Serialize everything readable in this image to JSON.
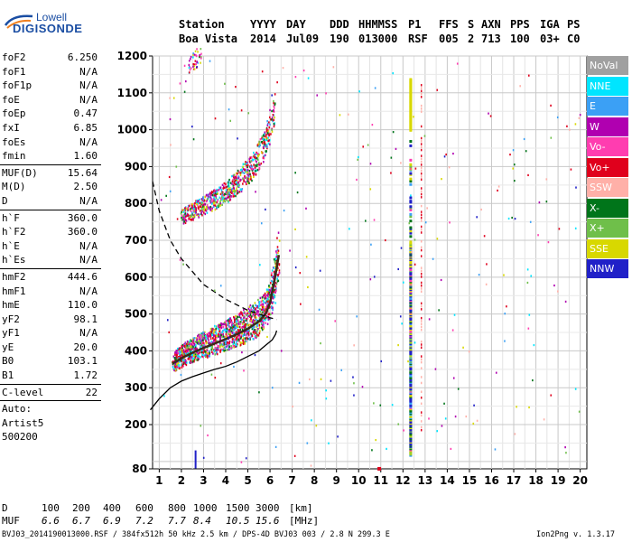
{
  "logo": {
    "line1": "Lowell",
    "line2": "DIGISONDE"
  },
  "header": {
    "labels": [
      "Station",
      "YYYY",
      "DAY",
      "DDD",
      "HHMMSS",
      "P1",
      "FFS",
      "S",
      "AXN",
      "PPS",
      "IGA",
      "PS"
    ],
    "values": [
      "Boa Vista",
      "2014",
      "Jul09",
      "190",
      "013000",
      "RSF",
      "005",
      "2",
      "713",
      "100",
      "03+",
      "C0"
    ]
  },
  "params": {
    "group1": [
      {
        "label": "foF2",
        "value": "6.250"
      },
      {
        "label": "foF1",
        "value": "N/A"
      },
      {
        "label": "foF1p",
        "value": "N/A"
      },
      {
        "label": "foE",
        "value": "N/A"
      },
      {
        "label": "foEp",
        "value": "0.47"
      },
      {
        "label": "fxI",
        "value": "6.85"
      },
      {
        "label": "foEs",
        "value": "N/A"
      },
      {
        "label": "fmin",
        "value": "1.60"
      }
    ],
    "group2": [
      {
        "label": "MUF(D)",
        "value": "15.64"
      },
      {
        "label": "M(D)",
        "value": "2.50"
      },
      {
        "label": "D",
        "value": "N/A"
      }
    ],
    "group3": [
      {
        "label": "h`F",
        "value": "360.0"
      },
      {
        "label": "h`F2",
        "value": "360.0"
      },
      {
        "label": "h`E",
        "value": "N/A"
      },
      {
        "label": "h`Es",
        "value": "N/A"
      }
    ],
    "group4": [
      {
        "label": "hmF2",
        "value": "444.6"
      },
      {
        "label": "hmF1",
        "value": "N/A"
      },
      {
        "label": "hmE",
        "value": "110.0"
      },
      {
        "label": "yF2",
        "value": "98.1"
      },
      {
        "label": "yF1",
        "value": "N/A"
      },
      {
        "label": "yE",
        "value": "20.0"
      },
      {
        "label": "B0",
        "value": "103.1"
      },
      {
        "label": "B1",
        "value": "1.72"
      }
    ],
    "group5": [
      {
        "label": "C-level",
        "value": "22"
      }
    ],
    "group6": [
      {
        "label": "Auto:",
        "value": ""
      },
      {
        "label": "Artist5",
        "value": ""
      },
      {
        "label": "500200",
        "value": ""
      }
    ]
  },
  "legend": [
    {
      "name": "NoVal",
      "color": "#a0a0a0"
    },
    {
      "name": "NNE",
      "color": "#00e5ff"
    },
    {
      "name": "E",
      "color": "#3ba0f5"
    },
    {
      "name": "W",
      "color": "#b000b0"
    },
    {
      "name": "Vo-",
      "color": "#ff3db0"
    },
    {
      "name": "Vo+",
      "color": "#e0001c"
    },
    {
      "name": "SSW",
      "color": "#ffb0a8"
    },
    {
      "name": "X-",
      "color": "#00751a"
    },
    {
      "name": "X+",
      "color": "#6fbf4a"
    },
    {
      "name": "SSE",
      "color": "#d8d800"
    },
    {
      "name": "NNW",
      "color": "#2020c8"
    }
  ],
  "chart_data": {
    "type": "scatter",
    "xlim": [
      0.7,
      20.3
    ],
    "ylim": [
      80,
      1200
    ],
    "xticks": [
      1,
      2,
      3,
      4,
      5,
      6,
      7,
      8,
      9,
      10,
      11,
      12,
      13,
      14,
      15,
      16,
      17,
      18,
      19,
      20
    ],
    "yticks": [
      80,
      200,
      300,
      400,
      500,
      600,
      700,
      800,
      900,
      1000,
      1100,
      1200
    ],
    "grid": true,
    "series": [
      {
        "name": "O-trace F2",
        "x": [
          1.6,
          2.0,
          2.5,
          3.0,
          3.5,
          4.0,
          4.5,
          5.0,
          5.5,
          5.8,
          6.0,
          6.2,
          6.4
        ],
        "y": [
          365,
          380,
          395,
          408,
          420,
          432,
          445,
          460,
          480,
          500,
          530,
          590,
          660
        ]
      },
      {
        "name": "O-trace F2 multiple",
        "x": [
          2.0,
          2.5,
          3.0,
          3.5,
          4.0,
          4.5,
          5.0,
          5.5,
          5.9,
          6.2
        ],
        "y": [
          760,
          775,
          790,
          805,
          825,
          850,
          880,
          920,
          980,
          1050
        ]
      },
      {
        "name": "profile",
        "x": [
          0.6,
          1.0,
          1.5,
          2.0,
          2.5,
          3.0,
          3.5,
          4.0,
          4.5,
          5.0,
          5.5,
          5.8,
          6.1,
          6.25,
          6.3
        ],
        "y": [
          240,
          270,
          300,
          318,
          330,
          340,
          350,
          358,
          370,
          385,
          400,
          415,
          430,
          445,
          455
        ]
      },
      {
        "name": "MUF",
        "x": [
          0.7,
          1.0,
          1.5,
          2.0,
          3.0,
          4.0,
          5.0,
          5.5,
          6.0,
          6.3
        ],
        "y": [
          860,
          780,
          700,
          650,
          580,
          540,
          510,
          500,
          490,
          485
        ]
      }
    ]
  },
  "bottom": {
    "d_label": "D",
    "d_values": [
      "100",
      "200",
      "400",
      "600",
      "800",
      "1000",
      "1500",
      "3000"
    ],
    "d_unit": "[km]",
    "muf_label": "MUF",
    "muf_values": [
      "6.6",
      "6.7",
      "6.9",
      "7.2",
      "7.7",
      "8.4",
      "10.5",
      "15.6"
    ],
    "muf_unit": "[MHz]"
  },
  "footer": {
    "text": "BVJ03_2014190013000.RSF / 384fx512h 50 kHz 2.5 km / DPS-4D BVJ03 003 / 2.8 N 299.3 E",
    "version": "Ion2Png v. 1.3.17"
  }
}
